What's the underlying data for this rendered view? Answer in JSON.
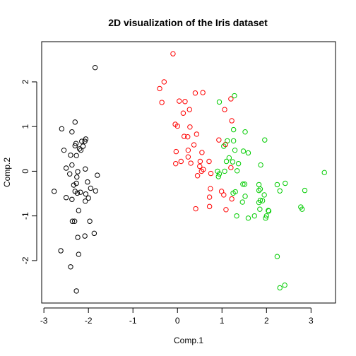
{
  "chart_data": {
    "type": "scatter",
    "title": "2D visualization of the Iris dataset",
    "xlabel": "Comp.1",
    "ylabel": "Comp.2",
    "xlim": [
      -3.05,
      3.55
    ],
    "ylim": [
      -2.95,
      2.9
    ],
    "x_ticks": [
      -3,
      -2,
      -1,
      0,
      1,
      2,
      3
    ],
    "y_ticks": [
      -2,
      -1,
      0,
      1,
      2
    ],
    "grid": false,
    "legend": "none",
    "series": [
      {
        "color": "#000000",
        "points": [
          [
            -1.85,
            2.32
          ],
          [
            -2.3,
            1.1
          ],
          [
            -2.6,
            0.95
          ],
          [
            -2.37,
            0.88
          ],
          [
            -2.06,
            0.72
          ],
          [
            -2.08,
            0.67
          ],
          [
            -2.15,
            0.67
          ],
          [
            -2.28,
            0.62
          ],
          [
            -2.3,
            0.57
          ],
          [
            -2.12,
            0.56
          ],
          [
            -2.55,
            0.47
          ],
          [
            -2.2,
            0.5
          ],
          [
            -2.17,
            0.47
          ],
          [
            -2.4,
            0.36
          ],
          [
            -2.27,
            0.35
          ],
          [
            -2.37,
            0.14
          ],
          [
            -2.5,
            0.07
          ],
          [
            -2.07,
            0.05
          ],
          [
            -2.24,
            -0.01
          ],
          [
            -2.42,
            -0.06
          ],
          [
            -1.8,
            -0.09
          ],
          [
            -2.26,
            -0.13
          ],
          [
            -2.02,
            -0.24
          ],
          [
            -2.27,
            -0.27
          ],
          [
            -2.33,
            -0.31
          ],
          [
            -1.95,
            -0.38
          ],
          [
            -1.84,
            -0.44
          ],
          [
            -2.77,
            -0.45
          ],
          [
            -2.3,
            -0.45
          ],
          [
            -2.18,
            -0.47
          ],
          [
            -2.25,
            -0.49
          ],
          [
            -2.06,
            -0.51
          ],
          [
            -2.5,
            -0.59
          ],
          [
            -2.37,
            -0.63
          ],
          [
            -2.07,
            -0.67
          ],
          [
            -2.36,
            -1.12
          ],
          [
            -2.22,
            -0.88
          ],
          [
            -2.31,
            -1.12
          ],
          [
            -1.97,
            -1.12
          ],
          [
            -2.08,
            -1.45
          ],
          [
            -1.87,
            -1.39
          ],
          [
            -2.24,
            -1.48
          ],
          [
            -2.62,
            -1.78
          ],
          [
            -2.22,
            -1.86
          ],
          [
            -2.4,
            -2.14
          ],
          [
            -2.27,
            -2.68
          ],
          [
            -2.0,
            -0.6
          ]
        ]
      },
      {
        "color": "#ff0000",
        "points": [
          [
            -0.1,
            2.63
          ],
          [
            -0.3,
            2.0
          ],
          [
            -0.4,
            1.85
          ],
          [
            0.4,
            1.75
          ],
          [
            0.57,
            1.76
          ],
          [
            -0.35,
            1.54
          ],
          [
            0.04,
            1.57
          ],
          [
            0.17,
            1.56
          ],
          [
            1.2,
            1.62
          ],
          [
            1.06,
            1.38
          ],
          [
            0.27,
            1.38
          ],
          [
            0.13,
            1.3
          ],
          [
            1.22,
            1.13
          ],
          [
            -0.05,
            1.05
          ],
          [
            0.0,
            1.01
          ],
          [
            0.28,
            0.99
          ],
          [
            0.43,
            0.83
          ],
          [
            0.15,
            0.78
          ],
          [
            0.23,
            0.77
          ],
          [
            0.93,
            0.7
          ],
          [
            1.08,
            0.6
          ],
          [
            0.37,
            0.59
          ],
          [
            0.24,
            0.47
          ],
          [
            0.55,
            0.42
          ],
          [
            -0.03,
            0.44
          ],
          [
            0.24,
            0.32
          ],
          [
            0.08,
            0.22
          ],
          [
            0.51,
            0.22
          ],
          [
            -0.04,
            0.17
          ],
          [
            0.71,
            0.22
          ],
          [
            0.3,
            0.18
          ],
          [
            0.5,
            0.11
          ],
          [
            0.58,
            0.04
          ],
          [
            1.2,
            0.08
          ],
          [
            0.75,
            -0.05
          ],
          [
            0.45,
            -0.1
          ],
          [
            0.74,
            -0.39
          ],
          [
            0.99,
            -0.45
          ],
          [
            1.04,
            -0.53
          ],
          [
            0.72,
            -0.58
          ],
          [
            1.22,
            -0.62
          ],
          [
            0.72,
            -0.79
          ],
          [
            1.09,
            -0.86
          ],
          [
            0.41,
            -0.84
          ],
          [
            0.54,
            0.0
          ]
        ]
      },
      {
        "color": "#00cc00",
        "points": [
          [
            1.28,
            1.69
          ],
          [
            0.94,
            1.55
          ],
          [
            1.26,
            0.93
          ],
          [
            1.12,
            0.68
          ],
          [
            1.26,
            0.68
          ],
          [
            1.52,
            0.88
          ],
          [
            1.96,
            0.7
          ],
          [
            1.29,
            0.47
          ],
          [
            1.48,
            0.45
          ],
          [
            1.59,
            0.41
          ],
          [
            1.04,
            0.56
          ],
          [
            1.16,
            0.3
          ],
          [
            1.37,
            0.17
          ],
          [
            1.1,
            0.22
          ],
          [
            1.24,
            0.21
          ],
          [
            1.87,
            0.14
          ],
          [
            1.06,
            0.0
          ],
          [
            0.9,
            0.0
          ],
          [
            1.34,
            0.01
          ],
          [
            0.94,
            -0.06
          ],
          [
            0.92,
            -0.12
          ],
          [
            1.47,
            -0.29
          ],
          [
            1.51,
            -0.29
          ],
          [
            1.83,
            -0.3
          ],
          [
            2.24,
            -0.3
          ],
          [
            1.86,
            -0.4
          ],
          [
            1.83,
            -0.43
          ],
          [
            2.42,
            -0.27
          ],
          [
            2.3,
            -0.44
          ],
          [
            3.3,
            -0.03
          ],
          [
            1.3,
            -0.46
          ],
          [
            1.25,
            -0.49
          ],
          [
            1.52,
            -0.56
          ],
          [
            1.86,
            -0.65
          ],
          [
            1.95,
            -0.53
          ],
          [
            1.91,
            -0.66
          ],
          [
            1.46,
            -0.69
          ],
          [
            1.83,
            -0.7
          ],
          [
            2.86,
            -0.43
          ],
          [
            2.05,
            -0.89
          ],
          [
            2.77,
            -0.8
          ],
          [
            2.8,
            -0.85
          ],
          [
            1.85,
            -0.85
          ],
          [
            2.04,
            -0.88
          ],
          [
            1.33,
            -1.0
          ],
          [
            1.59,
            -1.05
          ],
          [
            1.73,
            -1.0
          ],
          [
            1.98,
            -1.05
          ],
          [
            2.0,
            -1.0
          ],
          [
            2.24,
            -1.91
          ],
          [
            2.41,
            -2.55
          ],
          [
            2.3,
            -2.61
          ]
        ]
      }
    ]
  }
}
